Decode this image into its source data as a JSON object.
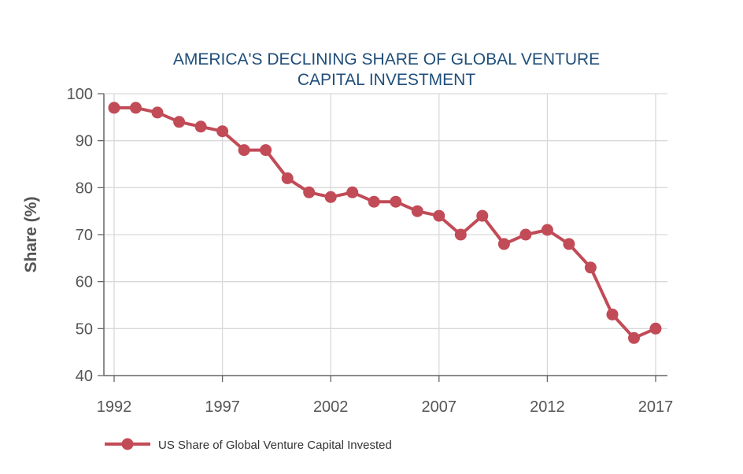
{
  "chart_data": {
    "type": "line",
    "title_lines": [
      "AMERICA'S DECLINING SHARE OF GLOBAL VENTURE",
      "CAPITAL INVESTMENT"
    ],
    "xlabel": "",
    "ylabel": "Share (%)",
    "x": [
      1992,
      1993,
      1994,
      1995,
      1996,
      1997,
      1998,
      1999,
      2000,
      2001,
      2002,
      2003,
      2004,
      2005,
      2006,
      2007,
      2008,
      2009,
      2010,
      2011,
      2012,
      2013,
      2014,
      2015,
      2016,
      2017
    ],
    "series": [
      {
        "name": "US Share of Global Venture Capital Invested",
        "color": "#c14b57",
        "values": [
          97,
          97,
          96,
          94,
          93,
          92,
          88,
          88,
          82,
          79,
          78,
          79,
          77,
          77,
          75,
          74,
          70,
          74,
          68,
          70,
          71,
          68,
          63,
          53,
          48,
          50
        ]
      }
    ],
    "xlim": [
      1992,
      2017
    ],
    "ylim": [
      40,
      100
    ],
    "x_ticks": [
      "1992",
      "1997",
      "2002",
      "2007",
      "2012",
      "2017"
    ],
    "y_ticks": [
      "40",
      "50",
      "60",
      "70",
      "80",
      "90",
      "100"
    ],
    "grid": true,
    "legend_position": "bottom-left"
  },
  "colors": {
    "title": "#1f4e79",
    "grid": "#d9d9d9",
    "axis": "#666666"
  }
}
